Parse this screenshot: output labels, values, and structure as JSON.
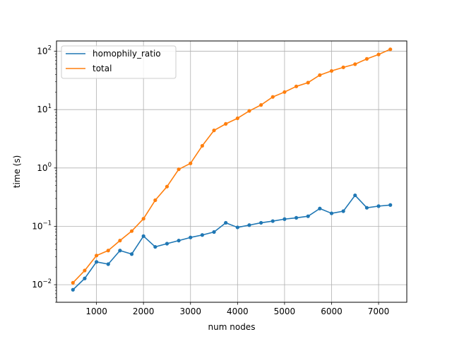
{
  "chart_data": {
    "type": "line",
    "title": "",
    "xlabel": "num nodes",
    "ylabel": "time (s)",
    "xlim": [
      150,
      7600
    ],
    "ylim": [
      0.005,
      150
    ],
    "yscale": "log",
    "grid": true,
    "legend_position": "top-left",
    "x_ticks": [
      1000,
      2000,
      3000,
      4000,
      5000,
      6000,
      7000
    ],
    "y_ticks": [
      {
        "value": 0.01,
        "base": "10",
        "exp": "−2"
      },
      {
        "value": 0.1,
        "base": "10",
        "exp": "−1"
      },
      {
        "value": 1,
        "base": "10",
        "exp": "0"
      },
      {
        "value": 10,
        "base": "10",
        "exp": "1"
      },
      {
        "value": 100,
        "base": "10",
        "exp": "2"
      }
    ],
    "x": [
      500,
      750,
      1000,
      1250,
      1500,
      1750,
      2000,
      2250,
      2500,
      2750,
      3000,
      3250,
      3500,
      3750,
      4000,
      4250,
      4500,
      4750,
      5000,
      5250,
      5500,
      5750,
      6000,
      6250,
      6500,
      6750,
      7000,
      7250
    ],
    "series": [
      {
        "name": "homophily_ratio",
        "color": "#1f77b4",
        "values": [
          0.0082,
          0.0128,
          0.0246,
          0.0225,
          0.0385,
          0.0335,
          0.068,
          0.0445,
          0.0505,
          0.057,
          0.0645,
          0.071,
          0.08,
          0.115,
          0.096,
          0.105,
          0.115,
          0.123,
          0.133,
          0.14,
          0.149,
          0.202,
          0.167,
          0.182,
          0.34,
          0.208,
          0.222,
          0.232
        ]
      },
      {
        "name": "total",
        "color": "#ff7f0e",
        "values": [
          0.0108,
          0.0175,
          0.0316,
          0.0385,
          0.057,
          0.083,
          0.135,
          0.28,
          0.48,
          0.95,
          1.2,
          2.4,
          4.4,
          5.7,
          7.1,
          9.5,
          12.0,
          16.5,
          20.0,
          25.0,
          29.0,
          39.0,
          46.0,
          53.0,
          60.0,
          74.0,
          88.0,
          108.0
        ]
      }
    ]
  }
}
